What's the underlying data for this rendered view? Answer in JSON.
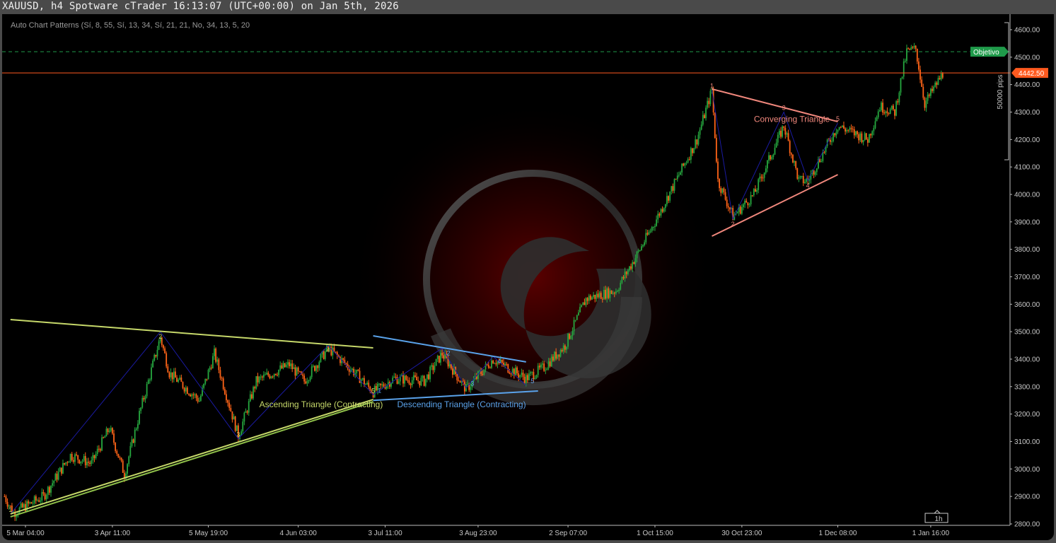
{
  "window": {
    "title": "XAUUSD, h4 Spotware cTrader 16:13:07 (UTC+00:00) on Jan 5th, 2026"
  },
  "indicator": {
    "label": "Auto Chart Patterns (Sí, 8, 55, Sí, 13, 34, Sí, 21, 21, No, 34, 13, 5, 20"
  },
  "colors": {
    "bull": "#26a83f",
    "bear": "#ff6418",
    "current_price": "#ff5a1f",
    "objective": "#1f9a4a",
    "ascending": "#c6d86a",
    "ascending_alt": "#8fc04a",
    "descending": "#5aa2ea",
    "converging": "#f0877c",
    "zigzag": "#1a1aa0"
  },
  "chart_data": {
    "type": "candlestick",
    "symbol": "XAUUSD",
    "timeframe": "h4",
    "ylim": [
      2780,
      4650
    ],
    "y_ticks": [
      "4600.00",
      "4500.00",
      "4400.00",
      "4300.00",
      "4200.00",
      "4100.00",
      "4000.00",
      "3900.00",
      "3800.00",
      "3700.00",
      "3600.00",
      "3500.00",
      "3400.00",
      "3300.00",
      "3200.00",
      "3100.00",
      "3000.00",
      "2900.00",
      "2800.00"
    ],
    "x_ticks": [
      {
        "label": "5 Mar 04:00",
        "date": "2025-03-05"
      },
      {
        "label": "3 Apr 11:00",
        "date": "2025-04-03"
      },
      {
        "label": "5 May 19:00",
        "date": "2025-05-05"
      },
      {
        "label": "4 Jun 03:00",
        "date": "2025-06-04"
      },
      {
        "label": "3 Jul 11:00",
        "date": "2025-07-03"
      },
      {
        "label": "3 Aug 23:00",
        "date": "2025-08-03"
      },
      {
        "label": "2 Sep 07:00",
        "date": "2025-09-02"
      },
      {
        "label": "1 Oct 15:00",
        "date": "2025-10-01"
      },
      {
        "label": "30 Oct 23:00",
        "date": "2025-10-30"
      },
      {
        "label": "1 Dec 08:00",
        "date": "2025-12-01"
      },
      {
        "label": "1 Jan 16:00",
        "date": "2026-01-01"
      }
    ],
    "price_path": [
      [
        "2025-02-26",
        2900
      ],
      [
        "2025-03-01",
        2840
      ],
      [
        "2025-03-11",
        2900
      ],
      [
        "2025-03-20",
        3050
      ],
      [
        "2025-03-27",
        3020
      ],
      [
        "2025-04-02",
        3150
      ],
      [
        "2025-04-07",
        2980
      ],
      [
        "2025-04-12",
        3200
      ],
      [
        "2025-04-19",
        3480
      ],
      [
        "2025-04-22",
        3350
      ],
      [
        "2025-05-02",
        3250
      ],
      [
        "2025-05-07",
        3420
      ],
      [
        "2025-05-15",
        3120
      ],
      [
        "2025-05-21",
        3320
      ],
      [
        "2025-06-01",
        3380
      ],
      [
        "2025-06-06",
        3320
      ],
      [
        "2025-06-14",
        3440
      ],
      [
        "2025-06-23",
        3350
      ],
      [
        "2025-06-29",
        3280
      ],
      [
        "2025-07-06",
        3330
      ],
      [
        "2025-07-16",
        3320
      ],
      [
        "2025-07-22",
        3420
      ],
      [
        "2025-07-30",
        3290
      ],
      [
        "2025-08-08",
        3400
      ],
      [
        "2025-08-19",
        3330
      ],
      [
        "2025-08-25",
        3370
      ],
      [
        "2025-09-01",
        3450
      ],
      [
        "2025-09-08",
        3620
      ],
      [
        "2025-09-18",
        3650
      ],
      [
        "2025-09-25",
        3780
      ],
      [
        "2025-10-01",
        3900
      ],
      [
        "2025-10-08",
        4050
      ],
      [
        "2025-10-15",
        4200
      ],
      [
        "2025-10-20",
        4380
      ],
      [
        "2025-10-22",
        4050
      ],
      [
        "2025-10-27",
        3920
      ],
      [
        "2025-11-03",
        4000
      ],
      [
        "2025-11-13",
        4250
      ],
      [
        "2025-11-18",
        4050
      ],
      [
        "2025-11-21",
        4050
      ],
      [
        "2025-12-01",
        4250
      ],
      [
        "2025-12-11",
        4200
      ],
      [
        "2025-12-15",
        4320
      ],
      [
        "2025-12-20",
        4300
      ],
      [
        "2025-12-24",
        4520
      ],
      [
        "2025-12-27",
        4530
      ],
      [
        "2025-12-30",
        4330
      ],
      [
        "2026-01-05",
        4440
      ]
    ],
    "current_price": {
      "label": "4442.50",
      "value": 4442.5
    },
    "objective": {
      "label": "Objetivo",
      "value": 4520
    },
    "range_label": "50000 pips",
    "timeframe_button": "1h",
    "patterns": [
      {
        "name": "Ascending Triangle (Contracting)",
        "color_key": "ascending",
        "upper": [
          [
            "2025-02-28",
            3544
          ],
          [
            "2025-06-29",
            3441
          ]
        ],
        "lower": [
          [
            "2025-02-28",
            2836
          ],
          [
            "2025-06-29",
            3253
          ]
        ],
        "label_at": [
          "2025-05-22",
          3225
        ],
        "pivots": [
          [
            "2025-02-28",
            2836,
            "1"
          ],
          [
            "2025-04-19",
            3500,
            "2"
          ],
          [
            "2025-05-15",
            3110,
            "3"
          ],
          [
            "2025-06-14",
            3450,
            "4"
          ],
          [
            "2025-06-29",
            3270,
            "5"
          ]
        ]
      },
      {
        "name": "Descending Triangle (Contracting)",
        "color_key": "descending",
        "upper": [
          [
            "2025-06-29",
            3485
          ],
          [
            "2025-08-19",
            3390
          ]
        ],
        "lower": [
          [
            "2025-06-29",
            3250
          ],
          [
            "2025-08-23",
            3284
          ]
        ],
        "label_at": [
          "2025-07-07",
          3225
        ],
        "pivots": [
          [
            "2025-06-29",
            3270,
            "1"
          ],
          [
            "2025-07-22",
            3440,
            "2"
          ],
          [
            "2025-07-30",
            3295,
            "3"
          ],
          [
            "2025-08-08",
            3410,
            "4"
          ],
          [
            "2025-08-19",
            3305,
            "5"
          ]
        ]
      },
      {
        "name": "Converging Triangle",
        "color_key": "converging",
        "upper": [
          [
            "2025-10-20",
            4384
          ],
          [
            "2025-12-01",
            4265
          ]
        ],
        "lower": [
          [
            "2025-10-20",
            3848
          ],
          [
            "2025-12-01",
            4072
          ]
        ],
        "label_at": [
          "2025-11-03",
          4300
        ],
        "pivots": [
          [
            "2025-10-20",
            4380,
            "1"
          ],
          [
            "2025-10-27",
            3910,
            "2"
          ],
          [
            "2025-11-13",
            4300,
            "3"
          ],
          [
            "2025-11-21",
            4050,
            "4"
          ],
          [
            "2025-12-01",
            4260,
            "5"
          ]
        ]
      }
    ]
  }
}
